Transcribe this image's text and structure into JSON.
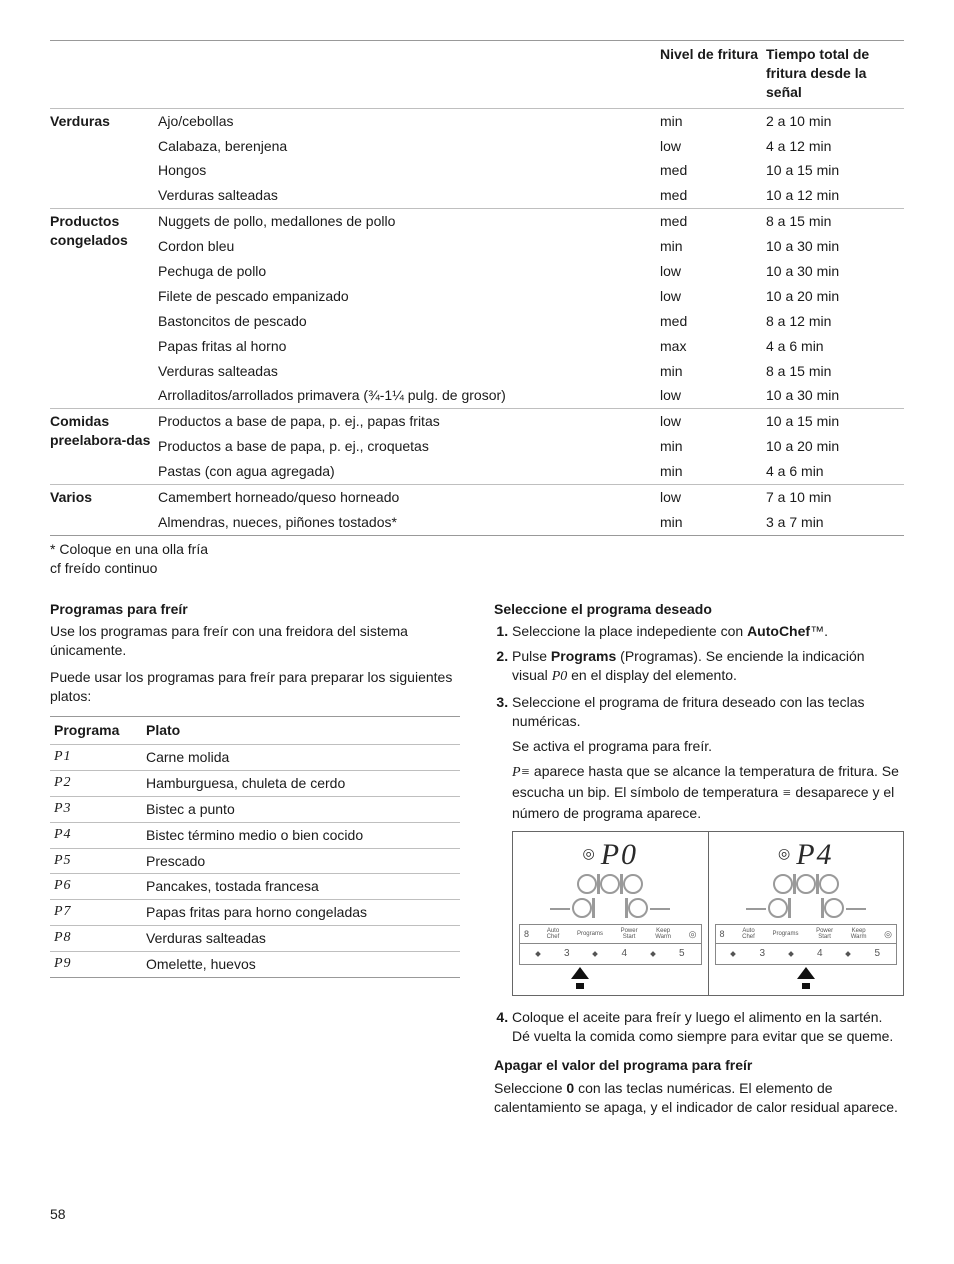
{
  "table": {
    "headers": {
      "c1": "",
      "c2": "",
      "c3": "Nivel de fritura",
      "c4": "Tiempo total de fritura desde la señal"
    },
    "groups": [
      {
        "category": "Verduras",
        "rows": [
          {
            "item": "Ajo/cebollas",
            "level": "min",
            "time": "2 a 10 min"
          },
          {
            "item": "Calabaza, berenjena",
            "level": "low",
            "time": "4 a 12 min"
          },
          {
            "item": "Hongos",
            "level": "med",
            "time": "10 a 15 min"
          },
          {
            "item": "Verduras salteadas",
            "level": "med",
            "time": "10 a 12 min"
          }
        ]
      },
      {
        "category": "Productos congelados",
        "rows": [
          {
            "item": "Nuggets de pollo, medallones de pollo",
            "level": "med",
            "time": "8 a 15 min"
          },
          {
            "item": "Cordon bleu",
            "level": "min",
            "time": "10 a 30 min"
          },
          {
            "item": "Pechuga de pollo",
            "level": "low",
            "time": "10 a 30 min"
          },
          {
            "item": "Filete de pescado empanizado",
            "level": "low",
            "time": "10 a 20 min"
          },
          {
            "item": "Bastoncitos de pescado",
            "level": "med",
            "time": "8 a 12 min"
          },
          {
            "item": "Papas fritas al horno",
            "level": "max",
            "time": "4 a 6 min"
          },
          {
            "item": "Verduras salteadas",
            "level": "min",
            "time": "8 a 15 min"
          },
          {
            "item": "Arrolladitos/arrollados primavera (¾-1¼ pulg. de grosor)",
            "level": "low",
            "time": "10 a 30 min"
          }
        ]
      },
      {
        "category": "Comidas preelabora-das",
        "rows": [
          {
            "item": "Productos a base de papa, p. ej., papas fritas",
            "level": "low",
            "time": "10 a 15 min"
          },
          {
            "item": "Productos a base de papa, p. ej., croquetas",
            "level": "min",
            "time": "10 a 20 min"
          },
          {
            "item": "Pastas (con agua agregada)",
            "level": "min",
            "time": "4 a 6 min"
          }
        ]
      },
      {
        "category": "Varios",
        "rows": [
          {
            "item": "Camembert horneado/queso horneado",
            "level": "low",
            "time": "7 a 10 min"
          },
          {
            "item": "Almendras, nueces, piñones tostados*",
            "level": "min",
            "time": "3 a 7 min"
          }
        ]
      }
    ],
    "footnote1": "* Coloque en una olla fría",
    "footnote2": "cf freído continuo"
  },
  "left": {
    "h1": "Programas para freír",
    "p1": "Use los programas para freír con una freidora del sistema únicamente.",
    "p2": "Puede usar los programas para freír para preparar los siguientes platos:",
    "th1": "Programa",
    "th2": "Plato",
    "rows": [
      {
        "code": "P1",
        "dish": "Carne molida"
      },
      {
        "code": "P2",
        "dish": "Hamburguesa, chuleta de cerdo"
      },
      {
        "code": "P3",
        "dish": "Bistec a punto"
      },
      {
        "code": "P4",
        "dish": "Bistec término medio o bien cocido"
      },
      {
        "code": "P5",
        "dish": "Prescado"
      },
      {
        "code": "P6",
        "dish": "Pancakes, tostada francesa"
      },
      {
        "code": "P7",
        "dish": "Papas fritas para horno congeladas"
      },
      {
        "code": "P8",
        "dish": "Verduras salteadas"
      },
      {
        "code": "P9",
        "dish": "Omelette, huevos"
      }
    ]
  },
  "right": {
    "h1": "Seleccione el programa deseado",
    "s1a": "Seleccione la place indepediente con ",
    "s1b": "AutoChef",
    "s1c": "™.",
    "s2a": "Pulse ",
    "s2b": "Programs",
    "s2c": " (Programas). Se enciende la indicación visual ",
    "s2code": "P0",
    "s2d": " en el display del elemento.",
    "s3a": "Seleccione el programa de fritura deseado con las teclas numéricas.",
    "s3b": "Se activa el programa para freír.",
    "s3c_pre": "P",
    "s3c": " aparece hasta que se alcance la temperatura de fritura. Se escucha un bip. El símbolo de temperatura ",
    "s3d": " desaparece y el número de programa aparece.",
    "panelA": "P0",
    "panelB": "P4",
    "btns": {
      "b1": "8",
      "b2": "Auto\nChef",
      "b3": "Programs",
      "b4": "Power\nStart",
      "b5": "Keep\nWarm",
      "b6": "◎"
    },
    "nums": [
      "3",
      "4",
      "5"
    ],
    "s4": "Coloque el aceite para freír y luego el alimento en la sartén. Dé vuelta la comida como siempre para evitar que se queme.",
    "h2": "Apagar el valor del programa para freír",
    "p_off_a": "Seleccione ",
    "p_off_b": "0",
    "p_off_c": " con las teclas numéricas. El elemento de calentamiento se apaga, y el indicador de calor residual aparece."
  },
  "page": "58"
}
